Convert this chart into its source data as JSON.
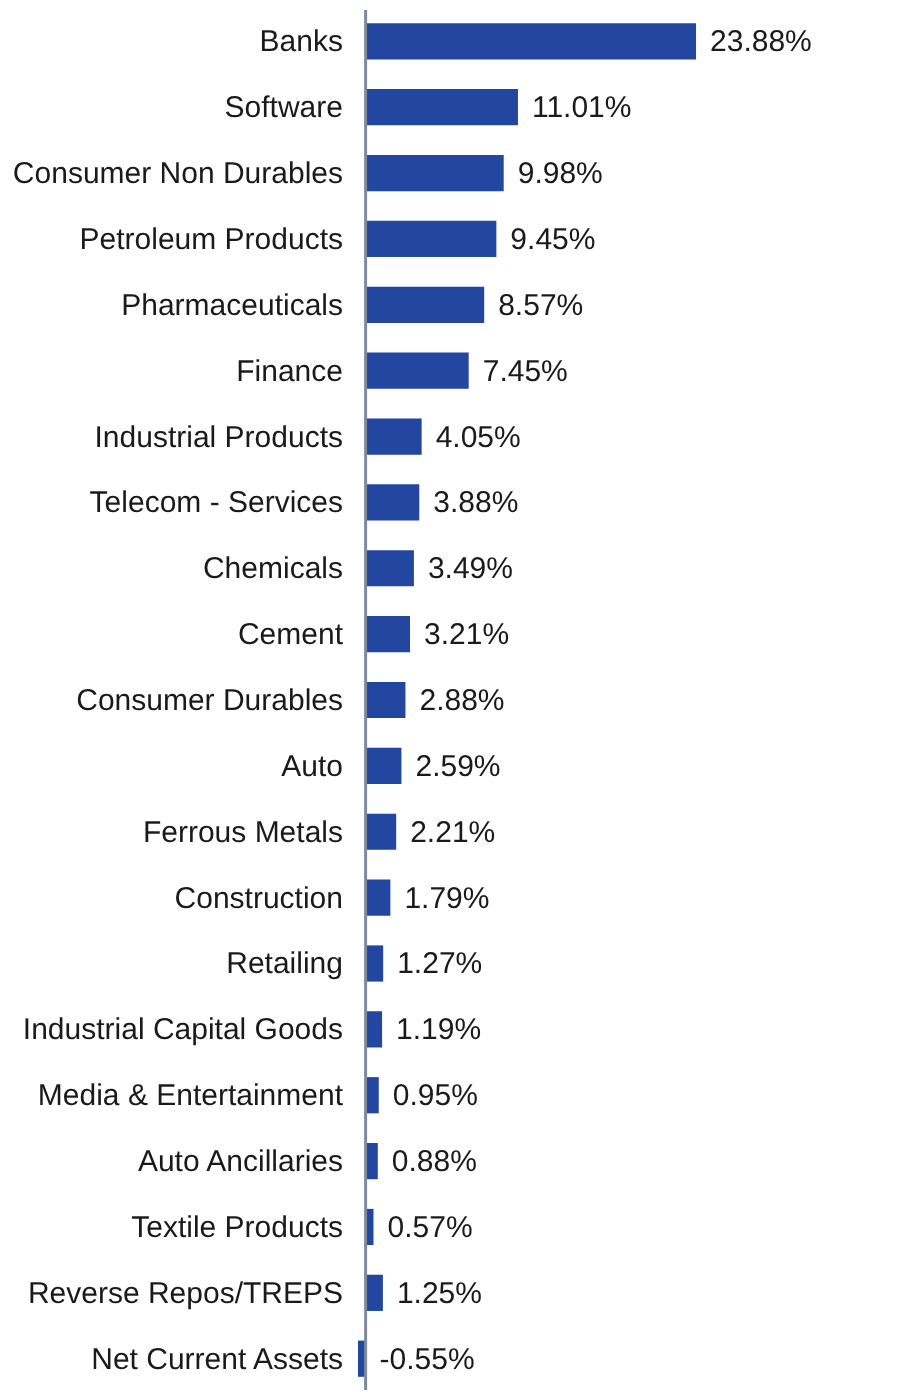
{
  "chart_data": {
    "type": "bar",
    "orientation": "horizontal",
    "categories": [
      "Banks",
      "Software",
      "Consumer Non Durables",
      "Petroleum Products",
      "Pharmaceuticals",
      "Finance",
      "Industrial Products",
      "Telecom - Services",
      "Chemicals",
      "Cement",
      "Consumer Durables",
      "Auto",
      "Ferrous Metals",
      "Construction",
      "Retailing",
      "Industrial Capital Goods",
      "Media & Entertainment",
      "Auto Ancillaries",
      "Textile Products",
      "Reverse Repos/TREPS",
      "Net Current Assets"
    ],
    "values": [
      23.88,
      11.01,
      9.98,
      9.45,
      8.57,
      7.45,
      4.05,
      3.88,
      3.49,
      3.21,
      2.88,
      2.59,
      2.21,
      1.79,
      1.27,
      1.19,
      0.95,
      0.88,
      0.57,
      1.25,
      -0.55
    ],
    "value_labels": [
      "23.88%",
      "11.01%",
      "9.98%",
      "9.45%",
      "8.57%",
      "7.45%",
      "4.05%",
      "3.88%",
      "3.49%",
      "3.21%",
      "2.88%",
      "2.59%",
      "2.21%",
      "1.79%",
      "1.27%",
      "1.19%",
      "0.95%",
      "0.88%",
      "0.57%",
      "1.25%",
      "-0.55%"
    ],
    "color": "#2346a0",
    "grid": false,
    "tick_labels": "y"
  }
}
